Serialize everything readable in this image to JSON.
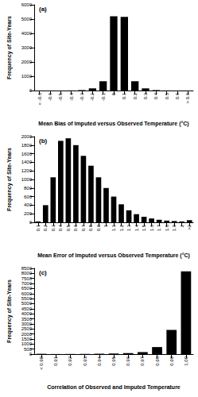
{
  "chart_data": [
    {
      "type": "bar",
      "title": "(a)",
      "x_label": "Mean Bias of Imputed versus Observed Temperature (°C)",
      "y_label": "Frequency of Site-Years",
      "categories": [
        "< -0.6",
        "-0.6",
        "-0.5",
        "-0.4",
        "-0.3",
        "-0.2",
        "-0.1",
        "0",
        "0.1",
        "0.2",
        "0.3",
        "0.4",
        "0.5",
        "0.6",
        "> 0.6"
      ],
      "values": [
        0,
        0,
        0,
        5,
        30,
        150,
        650,
        5200,
        5150,
        650,
        150,
        30,
        5,
        0,
        0
      ],
      "color": "#000000",
      "ylim": [
        0,
        6000
      ],
      "yticks": [
        0,
        1000,
        2000,
        3000,
        4000,
        5000,
        6000
      ]
    },
    {
      "type": "bar",
      "title": "(b)",
      "x_label": "Mean Error of Imputed versus Observed Temperature (°C)",
      "y_label": "Frequency of Site-Years",
      "categories": [
        "0.1",
        "0.2",
        "0.3",
        "0.4",
        "0.5",
        "0.6",
        "0.7",
        "0.8",
        "0.9",
        "1",
        "1.1",
        "1.2",
        "1.3",
        "1.4",
        "1.5",
        "1.6",
        "1.7",
        "1.8",
        "1.9",
        "2",
        ">2"
      ],
      "values": [
        20,
        400,
        1050,
        1900,
        1960,
        1800,
        1550,
        1320,
        1050,
        800,
        600,
        420,
        280,
        190,
        130,
        90,
        60,
        40,
        30,
        20,
        50
      ],
      "color": "#000000",
      "ylim": [
        0,
        2000
      ],
      "yticks": [
        0,
        200,
        400,
        600,
        800,
        1000,
        1200,
        1400,
        1600,
        1800,
        2000
      ]
    },
    {
      "type": "bar",
      "title": "(c)",
      "x_label": "Correlation of Observed and Imputed Temperature",
      "y_label": "Frequency of Site-Years",
      "categories": [
        "< 0.90",
        "0.91",
        "0.92",
        "0.93",
        "0.94",
        "0.95",
        "0.96",
        "0.97",
        "0.98",
        "0.99",
        "1.00"
      ],
      "values": [
        30,
        10,
        15,
        20,
        40,
        60,
        100,
        200,
        700,
        2400,
        8200
      ],
      "color": "#000000",
      "ylim": [
        0,
        8500
      ],
      "yticks": [
        0,
        500,
        1000,
        1500,
        2000,
        2500,
        3000,
        3500,
        4000,
        4500,
        5000,
        5500,
        6000,
        6500,
        7000,
        7500,
        8000,
        8500
      ]
    }
  ]
}
